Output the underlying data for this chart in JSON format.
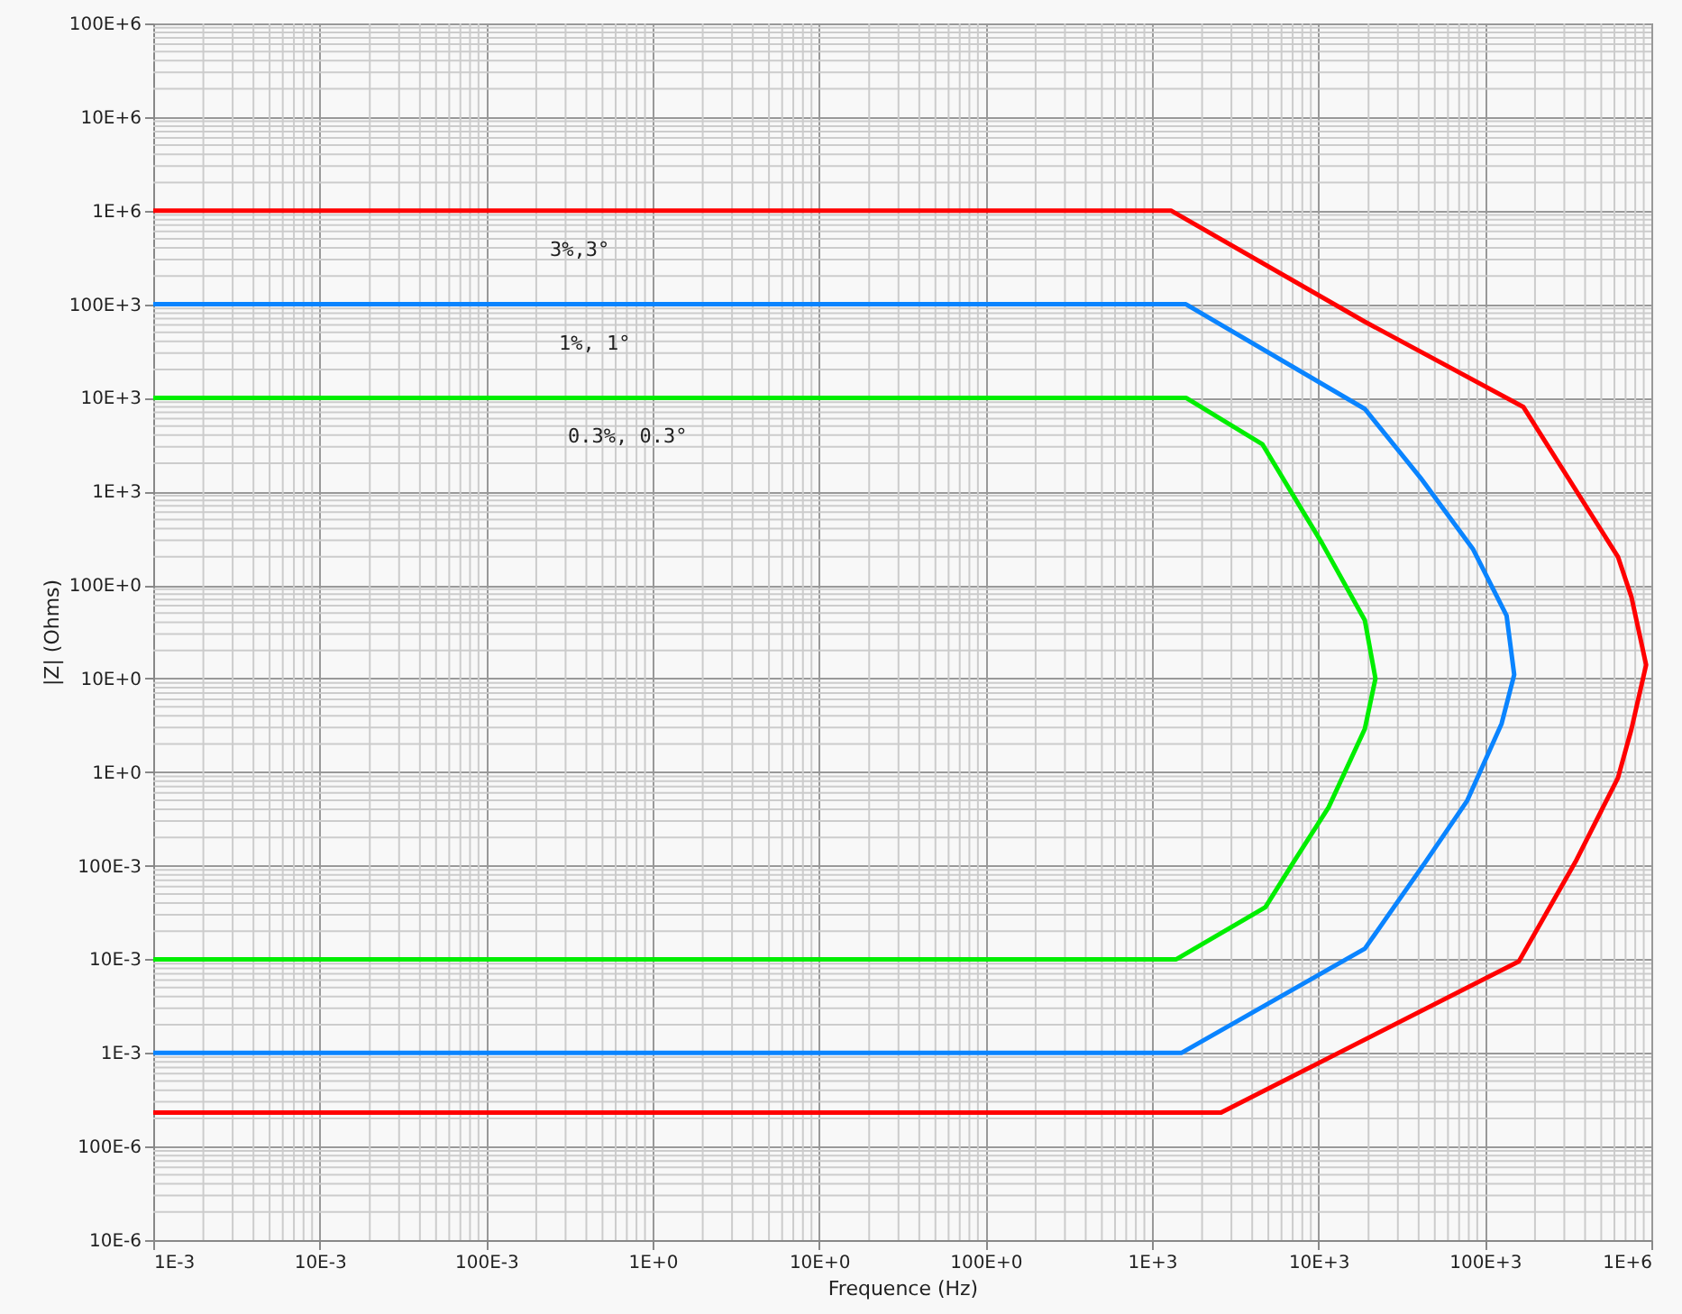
{
  "chart_data": {
    "type": "line",
    "xlabel": "Frequence (Hz)",
    "ylabel": "|Z| (Ohms)",
    "log": "xy",
    "grid": true,
    "marker": "none",
    "line_style": "solid",
    "xlim": [
      0.001,
      1000000
    ],
    "ylim": [
      1e-05,
      100000000
    ],
    "xticks": [
      {
        "value": 0.001,
        "label": "1E-3"
      },
      {
        "value": 0.01,
        "label": "10E-3"
      },
      {
        "value": 0.1,
        "label": "100E-3"
      },
      {
        "value": 1,
        "label": "1E+0"
      },
      {
        "value": 10,
        "label": "10E+0"
      },
      {
        "value": 100,
        "label": "100E+0"
      },
      {
        "value": 1000,
        "label": "1E+3"
      },
      {
        "value": 10000,
        "label": "10E+3"
      },
      {
        "value": 100000,
        "label": "100E+3"
      },
      {
        "value": 1000000,
        "label": "1E+6"
      }
    ],
    "yticks": [
      {
        "value": 1e-05,
        "label": "10E-6"
      },
      {
        "value": 0.0001,
        "label": "100E-6"
      },
      {
        "value": 0.001,
        "label": "1E-3"
      },
      {
        "value": 0.01,
        "label": "10E-3"
      },
      {
        "value": 0.1,
        "label": "100E-3"
      },
      {
        "value": 1,
        "label": "1E+0"
      },
      {
        "value": 10,
        "label": "10E+0"
      },
      {
        "value": 100,
        "label": "100E+0"
      },
      {
        "value": 1000,
        "label": "1E+3"
      },
      {
        "value": 10000,
        "label": "10E+3"
      },
      {
        "value": 100000,
        "label": "100E+3"
      },
      {
        "value": 1000000,
        "label": "1E+6"
      },
      {
        "value": 10000000,
        "label": "10E+6"
      },
      {
        "value": 100000000,
        "label": "100E+6"
      }
    ],
    "series": [
      {
        "color": "#ff0000",
        "x": [
          0.001,
          1300,
          19000,
          170000,
          630000,
          760000,
          930000,
          760000,
          630000,
          350000,
          160000,
          2600,
          0.001
        ],
        "values": [
          1000000,
          1000000,
          65000,
          8000,
          200,
          74,
          14,
          2.9,
          0.87,
          0.11,
          0.0095,
          0.00023,
          0.00023
        ]
      },
      {
        "color": "#0a84ff",
        "x": [
          0.001,
          1600,
          19000,
          41000,
          85000,
          135000,
          150000,
          126000,
          78000,
          44000,
          19000,
          1500,
          0.001
        ],
        "values": [
          100000,
          100000,
          7600,
          1400,
          240,
          47,
          11,
          3.3,
          0.49,
          0.11,
          0.013,
          0.001,
          0.001
        ]
      },
      {
        "color": "#00ee00",
        "x": [
          0.001,
          1600,
          4600,
          10500,
          19000,
          22000,
          19000,
          11500,
          7100,
          4800,
          1400,
          0.001
        ],
        "values": [
          10000,
          10000,
          3200,
          280,
          42,
          10,
          2.9,
          0.42,
          0.11,
          0.036,
          0.01,
          0.01
        ]
      }
    ],
    "annotations": [
      "3%,3°",
      "1%, 1°",
      "0.3%, 0.3°"
    ]
  }
}
